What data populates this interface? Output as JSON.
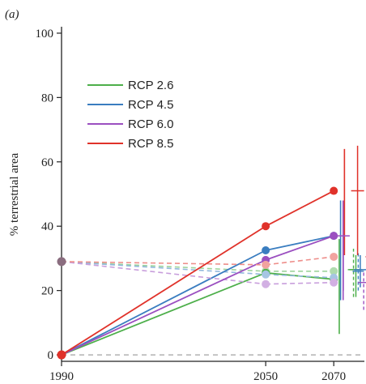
{
  "chart_data": {
    "type": "line",
    "panel_label": "(a)",
    "title": "",
    "xlabel": "",
    "ylabel": "% terrestrial area",
    "xlim": [
      1990,
      2079
    ],
    "ylim": [
      -2,
      102
    ],
    "x_ticks": [
      1990,
      2050,
      2070
    ],
    "y_ticks": [
      0,
      20,
      40,
      60,
      80,
      100
    ],
    "baseline_y": 0,
    "legend_position": "upper-left",
    "series": [
      {
        "name": "RCP 2.6",
        "color": "#4daf4a",
        "solid_x": [
          1990,
          2050,
          2070
        ],
        "solid_y": [
          0,
          25.5,
          23.5
        ],
        "dashed_x": [
          1990,
          2050,
          2070
        ],
        "dashed_y": [
          29,
          26,
          26
        ],
        "range_2070": [
          6.5,
          36
        ],
        "summary_solid": {
          "x": 2076.5,
          "y": 26.5,
          "low": 18,
          "high": 31
        },
        "summary_dashed": {
          "x": 2075.8,
          "y": 26.5,
          "low": 18,
          "high": 33
        }
      },
      {
        "name": "RCP 4.5",
        "color": "#3a7dc0",
        "solid_x": [
          1990,
          2050,
          2070
        ],
        "solid_y": [
          0,
          32.5,
          37
        ],
        "dashed_x": [
          1990,
          2050,
          2070
        ],
        "dashed_y": [
          29,
          25,
          24
        ],
        "range_2070": [
          17,
          48
        ],
        "summary_solid": {
          "x": 2077.8,
          "y": 26.5,
          "low": 21,
          "high": 31
        },
        "summary_dashed": {
          "x": 2077.2,
          "y": 26,
          "low": 20,
          "high": 32
        }
      },
      {
        "name": "RCP 6.0",
        "color": "#9b4fc0",
        "solid_x": [
          1990,
          2050,
          2070
        ],
        "solid_y": [
          0,
          29.5,
          37
        ],
        "dashed_x": [
          1990,
          2050,
          2070
        ],
        "dashed_y": [
          29,
          22,
          22.5
        ],
        "range_2070": [
          17,
          48
        ],
        "summary_solid": {
          "x": 2072.8,
          "y": 37,
          "low": 20,
          "high": 37
        },
        "summary_dashed": {
          "x": 2078.8,
          "y": 22.5,
          "low": 14,
          "high": 26
        }
      },
      {
        "name": "RCP 8.5",
        "color": "#e0322a",
        "solid_x": [
          1990,
          2050,
          2070
        ],
        "solid_y": [
          0,
          40,
          51
        ],
        "dashed_x": [
          1990,
          2050,
          2070
        ],
        "dashed_y": [
          29,
          28,
          30.5
        ],
        "range_2070": [
          31,
          64
        ],
        "summary_solid": {
          "x": 2077,
          "y": 51,
          "low": 31,
          "high": 65
        },
        "summary_dashed": {
          "x": 2081,
          "y": 30.5,
          "low": 20,
          "high": 38
        }
      }
    ]
  }
}
